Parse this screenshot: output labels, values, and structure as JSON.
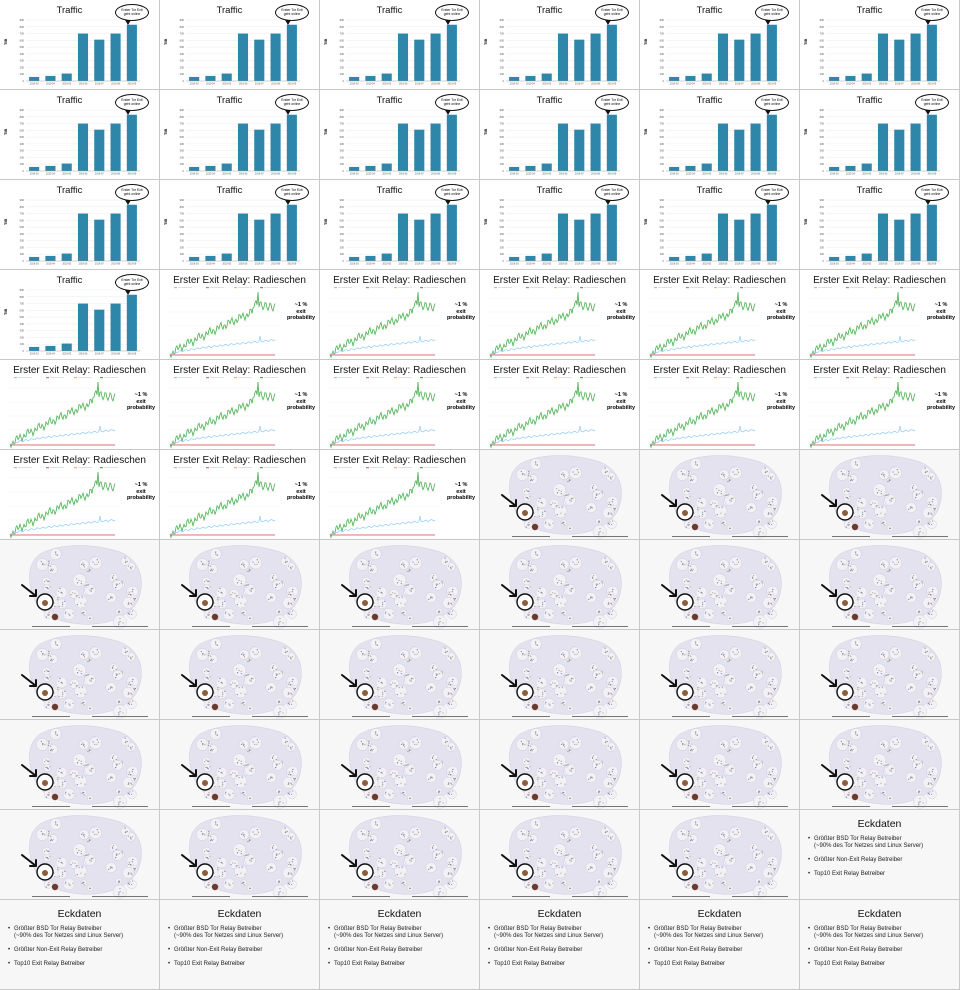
{
  "traffic": {
    "title": "Traffic",
    "ylabel": "TiB",
    "callout": [
      "Erster Tor Exit",
      "geht online"
    ],
    "chart_data": {
      "type": "bar",
      "categories": [
        "2019-03",
        "2019-04",
        "2019-05",
        "2019-06",
        "2019-07",
        "2019-08",
        "2019-09"
      ],
      "values": [
        60,
        75,
        110,
        700,
        610,
        700,
        830
      ],
      "ylim": [
        0,
        900
      ],
      "yticks": [
        0,
        100,
        200,
        300,
        400,
        500,
        600,
        700,
        800,
        900
      ],
      "color": "#2e86ab",
      "title": "Traffic",
      "ylabel": "TiB"
    }
  },
  "relay": {
    "title": "Erster Exit Relay: Radieschen",
    "probability": [
      "~1 %",
      "exit",
      "probability"
    ],
    "green_color": "#4caf50",
    "blue_color": "#90caf9",
    "red_color": "#e57373"
  },
  "graph": {
    "highlight_color": "#111111"
  },
  "eckdaten": {
    "title": "Eckdaten",
    "items": [
      {
        "label": "Größter BSD Tor Relay Betreiber",
        "sub": "(~90% des Tor Netzes sind Linux Server)"
      },
      {
        "label": "Größter Non-Exit Relay Betreiber",
        "sub": ""
      },
      {
        "label": "Top10 Exit Relay Betreiber",
        "sub": ""
      }
    ]
  },
  "layout": {
    "counts": {
      "traffic": 19,
      "relay": 14,
      "graph": 26,
      "eckdaten": 7
    }
  }
}
